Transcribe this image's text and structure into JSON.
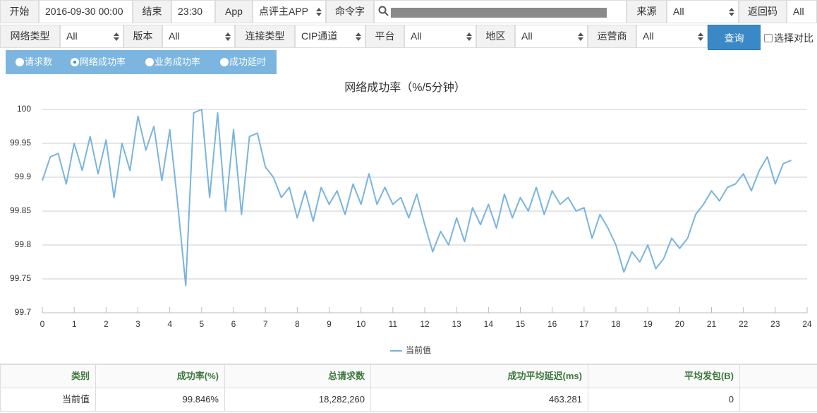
{
  "toolbar": {
    "start_label": "开始",
    "start_value": "2016-09-30 00:00",
    "end_label": "结束",
    "end_value": "23:30",
    "app_label": "App",
    "app_value": "点评主APP",
    "command_label": "命令字",
    "source_label": "来源",
    "source_value": "All",
    "return_code_label": "返回码",
    "return_code_value": "All",
    "network_type_label": "网络类型",
    "network_type_value": "All",
    "version_label": "版本",
    "version_value": "All",
    "connection_label": "连接类型",
    "connection_value": "CIP通道",
    "platform_label": "平台",
    "platform_value": "All",
    "region_label": "地区",
    "region_value": "All",
    "carrier_label": "运营商",
    "carrier_value": "All",
    "query_button": "查询",
    "compare_label": "选择对比"
  },
  "tabs": [
    "请求数",
    "网络成功率",
    "业务成功率",
    "成功延时"
  ],
  "active_tab": 1,
  "chart_data": {
    "type": "line",
    "title": "网络成功率（%/5分钟）",
    "x": [
      0,
      0.25,
      0.5,
      0.75,
      1,
      1.25,
      1.5,
      1.75,
      2,
      2.25,
      2.5,
      2.75,
      3,
      3.25,
      3.5,
      3.75,
      4,
      4.25,
      4.5,
      4.75,
      5,
      5.25,
      5.5,
      5.75,
      6,
      6.25,
      6.5,
      6.75,
      7,
      7.25,
      7.5,
      7.75,
      8,
      8.25,
      8.5,
      8.75,
      9,
      9.25,
      9.5,
      9.75,
      10,
      10.25,
      10.5,
      10.75,
      11,
      11.25,
      11.5,
      11.75,
      12,
      12.25,
      12.5,
      12.75,
      13,
      13.25,
      13.5,
      13.75,
      14,
      14.25,
      14.5,
      14.75,
      15,
      15.25,
      15.5,
      15.75,
      16,
      16.25,
      16.5,
      16.75,
      17,
      17.25,
      17.5,
      17.75,
      18,
      18.25,
      18.5,
      18.75,
      19,
      19.25,
      19.5,
      19.75,
      20,
      20.25,
      20.5,
      20.75,
      21,
      21.25,
      21.5,
      21.75,
      22,
      22.25,
      22.5,
      22.75,
      23,
      23.25,
      23.5
    ],
    "series": [
      {
        "name": "当前值",
        "color": "#7ab4de",
        "values": [
          99.895,
          99.93,
          99.935,
          99.89,
          99.95,
          99.91,
          99.96,
          99.905,
          99.955,
          99.87,
          99.95,
          99.91,
          99.99,
          99.94,
          99.975,
          99.895,
          99.97,
          99.86,
          99.74,
          99.995,
          100,
          99.87,
          99.995,
          99.85,
          99.97,
          99.845,
          99.96,
          99.965,
          99.915,
          99.9,
          99.87,
          99.885,
          99.84,
          99.88,
          99.835,
          99.885,
          99.86,
          99.88,
          99.845,
          99.89,
          99.86,
          99.905,
          99.86,
          99.885,
          99.86,
          99.87,
          99.84,
          99.875,
          99.83,
          99.79,
          99.82,
          99.8,
          99.84,
          99.805,
          99.855,
          99.83,
          99.86,
          99.825,
          99.875,
          99.84,
          99.87,
          99.85,
          99.885,
          99.845,
          99.88,
          99.86,
          99.87,
          99.85,
          99.855,
          99.81,
          99.845,
          99.825,
          99.8,
          99.76,
          99.79,
          99.775,
          99.8,
          99.765,
          99.78,
          99.81,
          99.795,
          99.81,
          99.845,
          99.86,
          99.88,
          99.865,
          99.885,
          99.89,
          99.905,
          99.88,
          99.91,
          99.93,
          99.89,
          99.92,
          99.925
        ]
      }
    ],
    "xlim": [
      0,
      24
    ],
    "xticks": [
      0,
      1,
      2,
      3,
      4,
      5,
      6,
      7,
      8,
      9,
      10,
      11,
      12,
      13,
      14,
      15,
      16,
      17,
      18,
      19,
      20,
      21,
      22,
      23,
      24
    ],
    "ylim": [
      99.7,
      100
    ],
    "yticks": [
      99.7,
      99.75,
      99.8,
      99.85,
      99.9,
      99.95,
      100
    ],
    "grid": true,
    "legend": "bottom"
  },
  "table": {
    "headers": [
      "类别",
      "成功率(%)",
      "总请求数",
      "成功平均延迟(ms)",
      "平均发包(B)"
    ],
    "rows": [
      [
        "当前值",
        "99.846%",
        "18,282,260",
        "463.281",
        "0"
      ]
    ]
  }
}
